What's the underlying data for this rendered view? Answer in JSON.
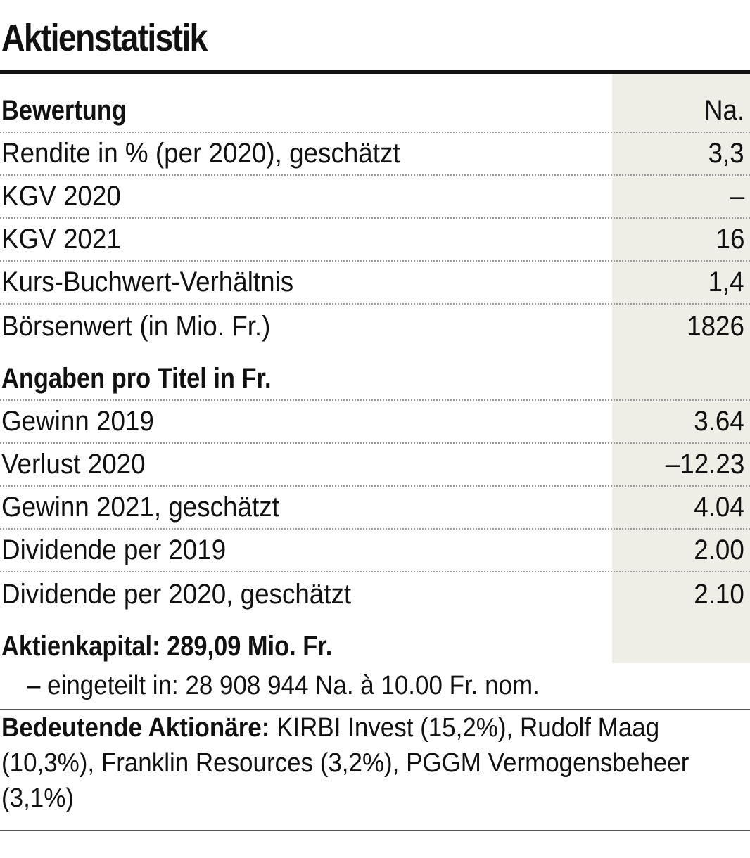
{
  "title": "Aktienstatistik",
  "bewertung": {
    "heading": "Bewertung",
    "heading_value": "Na.",
    "rows": [
      {
        "label": "Rendite in % (per 2020), geschätzt",
        "value": "3,3"
      },
      {
        "label": "KGV 2020",
        "value": "–"
      },
      {
        "label": "KGV 2021",
        "value": "16"
      },
      {
        "label": "Kurs-Buchwert-Verhältnis",
        "value": "1,4"
      },
      {
        "label": "Börsenwert (in Mio. Fr.)",
        "value": "1826"
      }
    ]
  },
  "angaben": {
    "heading": "Angaben pro Titel in Fr.",
    "rows": [
      {
        "label": "Gewinn 2019",
        "value": "3.64"
      },
      {
        "label": "Verlust 2020",
        "value": "–12.23"
      },
      {
        "label": "Gewinn 2021, geschätzt",
        "value": "4.04"
      },
      {
        "label": "Dividende per 2019",
        "value": "2.00"
      },
      {
        "label": "Dividende per 2020, geschätzt",
        "value": "2.10"
      }
    ]
  },
  "aktienkapital": {
    "label": "Aktienkapital: 289,09 Mio. Fr.",
    "sub": "– eingeteilt in: 28 908 944 Na. à 10.00 Fr. nom."
  },
  "aktionaere": {
    "label": "Bedeutende Aktionäre:",
    "text": "KIRBI Invest (15,2%), Rudolf Maag (10,3%), Franklin Resources (3,2%), PGGM Vermogensbeheer (3,1%)"
  }
}
